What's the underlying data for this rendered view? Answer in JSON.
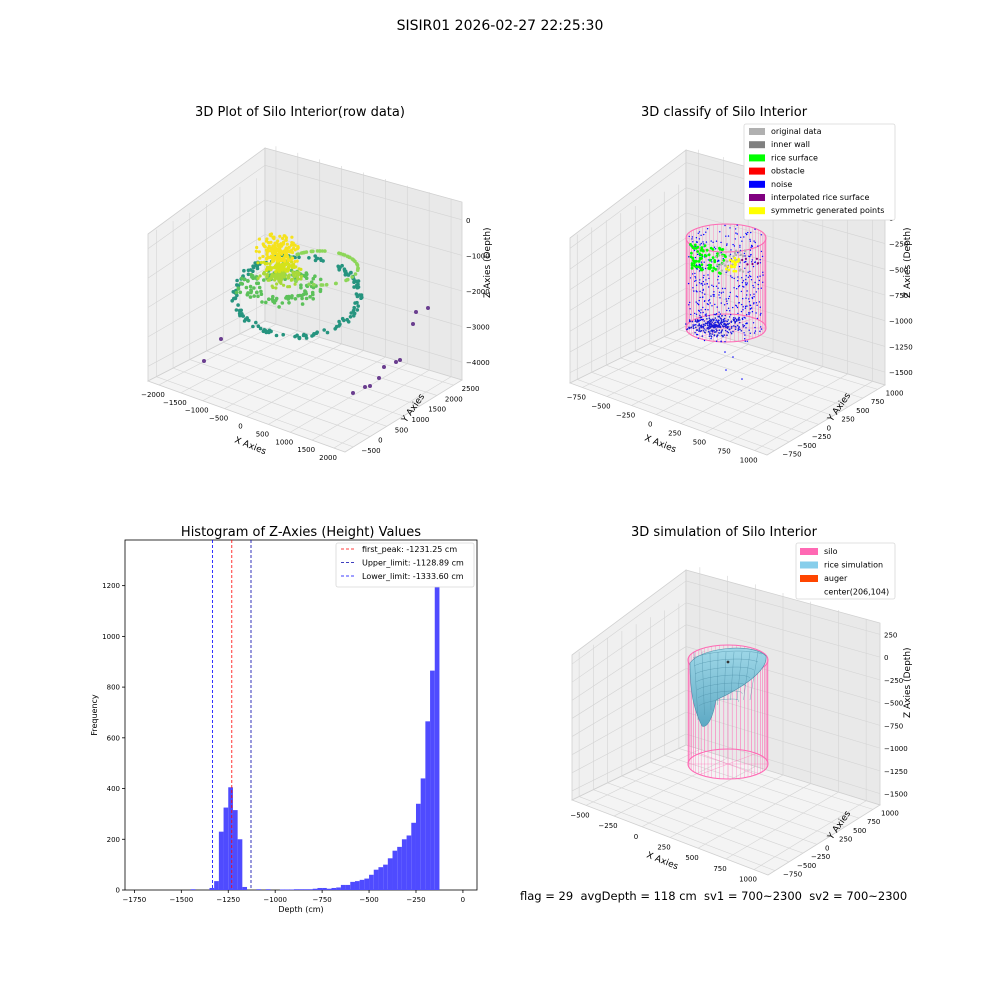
{
  "figure_title": "SISIR01 2026-02-27 22:25:30",
  "status_line": "flag = 29  avgDepth = 118 cm  sv1 = 700~2300  sv2 = 700~2300",
  "chart_data": [
    {
      "type": "scatter",
      "title": "3D Plot of Silo Interior(row data)",
      "xlabel": "X Axies",
      "ylabel": "Y Axies",
      "zlabel": "Z Axies (Depth)",
      "x_ticks": [
        "−2000",
        "−1500",
        "−1000",
        "−500",
        "0",
        "500",
        "1000",
        "1500",
        "2000"
      ],
      "y_ticks": [
        "−500",
        "0",
        "500",
        "1000",
        "1500",
        "2000",
        "2500"
      ],
      "z_ticks": [
        "0",
        "−1000",
        "−2000",
        "−3000",
        "−4000"
      ],
      "xlim": [
        -2000,
        2000
      ],
      "ylim": [
        -500,
        2500
      ],
      "zlim": [
        -4500,
        0
      ],
      "colormap": "viridis",
      "grid": true
    },
    {
      "type": "scatter",
      "title": "3D classify of Silo Interior",
      "xlabel": "X Axies",
      "ylabel": "Y Axies",
      "zlabel": "Z Axies (Depth)",
      "x_ticks": [
        "−750",
        "−500",
        "−250",
        "0",
        "250",
        "500",
        "750",
        "1000"
      ],
      "y_ticks": [
        "−750",
        "−500",
        "−250",
        "0",
        "250",
        "500",
        "750",
        "1000"
      ],
      "z_ticks": [
        "0",
        "−250",
        "−500",
        "−750",
        "−1000",
        "−1250",
        "−1500"
      ],
      "legend": [
        {
          "label": "original data",
          "color": "#b0b0b0"
        },
        {
          "label": "inner wall",
          "color": "#808080"
        },
        {
          "label": "rice surface",
          "color": "#00ff00"
        },
        {
          "label": "obstacle",
          "color": "#ff0000"
        },
        {
          "label": "noise",
          "color": "#0000ff"
        },
        {
          "label": "interpolated rice surface",
          "color": "#800080"
        },
        {
          "label": "symmetric generated points",
          "color": "#ffff00"
        }
      ],
      "legend_loc": "upper right",
      "grid": true
    },
    {
      "type": "histogram",
      "title": "Histogram of Z-Axies (Height) Values",
      "xlabel": "Depth (cm)",
      "ylabel": "Frequency",
      "xlim": [
        -1800,
        75
      ],
      "ylim": [
        0,
        1380
      ],
      "x_ticks": [
        -1750,
        -1500,
        -1250,
        -1000,
        -750,
        -500,
        -250,
        0
      ],
      "x_tick_labels": [
        "−1750",
        "−1500",
        "−1250",
        "−1000",
        "−750",
        "−500",
        "−250",
        "0"
      ],
      "y_ticks": [
        0,
        200,
        400,
        600,
        800,
        1000,
        1200
      ],
      "y_tick_labels": [
        "0",
        "200",
        "400",
        "600",
        "800",
        "1000",
        "1200"
      ],
      "bar_color": "#4f4bff",
      "bins": [
        {
          "start": -1450,
          "end": -1425,
          "count": 3
        },
        {
          "start": -1350,
          "end": -1325,
          "count": 8
        },
        {
          "start": -1325,
          "end": -1300,
          "count": 35
        },
        {
          "start": -1300,
          "end": -1275,
          "count": 230
        },
        {
          "start": -1275,
          "end": -1250,
          "count": 325
        },
        {
          "start": -1250,
          "end": -1225,
          "count": 405
        },
        {
          "start": -1225,
          "end": -1200,
          "count": 315
        },
        {
          "start": -1200,
          "end": -1175,
          "count": 200
        },
        {
          "start": -1175,
          "end": -1150,
          "count": 12
        },
        {
          "start": -1100,
          "end": -1075,
          "count": 3
        },
        {
          "start": -1050,
          "end": -1025,
          "count": 3
        },
        {
          "start": -975,
          "end": -950,
          "count": 2
        },
        {
          "start": -950,
          "end": -925,
          "count": 2
        },
        {
          "start": -925,
          "end": -900,
          "count": 2
        },
        {
          "start": -900,
          "end": -875,
          "count": 3
        },
        {
          "start": -875,
          "end": -850,
          "count": 3
        },
        {
          "start": -850,
          "end": -825,
          "count": 3
        },
        {
          "start": -825,
          "end": -800,
          "count": 3
        },
        {
          "start": -800,
          "end": -775,
          "count": 5
        },
        {
          "start": -775,
          "end": -750,
          "count": 8
        },
        {
          "start": -750,
          "end": -725,
          "count": 8
        },
        {
          "start": -725,
          "end": -700,
          "count": 5
        },
        {
          "start": -700,
          "end": -675,
          "count": 8
        },
        {
          "start": -675,
          "end": -650,
          "count": 10
        },
        {
          "start": -650,
          "end": -625,
          "count": 20
        },
        {
          "start": -625,
          "end": -600,
          "count": 20
        },
        {
          "start": -600,
          "end": -575,
          "count": 32
        },
        {
          "start": -575,
          "end": -550,
          "count": 35
        },
        {
          "start": -550,
          "end": -525,
          "count": 40
        },
        {
          "start": -525,
          "end": -500,
          "count": 45
        },
        {
          "start": -500,
          "end": -475,
          "count": 60
        },
        {
          "start": -475,
          "end": -450,
          "count": 80
        },
        {
          "start": -450,
          "end": -425,
          "count": 90
        },
        {
          "start": -425,
          "end": -400,
          "count": 100
        },
        {
          "start": -400,
          "end": -375,
          "count": 125
        },
        {
          "start": -375,
          "end": -350,
          "count": 155
        },
        {
          "start": -350,
          "end": -325,
          "count": 170
        },
        {
          "start": -325,
          "end": -300,
          "count": 200
        },
        {
          "start": -300,
          "end": -275,
          "count": 215
        },
        {
          "start": -275,
          "end": -250,
          "count": 265
        },
        {
          "start": -250,
          "end": -225,
          "count": 340
        },
        {
          "start": -225,
          "end": -200,
          "count": 440
        },
        {
          "start": -200,
          "end": -175,
          "count": 665
        },
        {
          "start": -175,
          "end": -150,
          "count": 865
        },
        {
          "start": -150,
          "end": -125,
          "count": 1310
        }
      ],
      "vlines": [
        {
          "x": -1231.25,
          "label": "first_peak: -1231.25 cm",
          "color": "#ff0000"
        },
        {
          "x": -1128.89,
          "label": "Upper_limit: -1128.89 cm",
          "color": "#0000aa"
        },
        {
          "x": -1333.6,
          "label": "Lower_limit: -1333.60 cm",
          "color": "#0000ff"
        }
      ],
      "legend_loc": "upper right"
    },
    {
      "type": "surface",
      "title": "3D simulation of Silo Interior",
      "xlabel": "X Axies",
      "ylabel": "Y Axies",
      "zlabel": "Z Axies (Depth)",
      "x_ticks": [
        "−500",
        "−250",
        "0",
        "250",
        "500",
        "750",
        "1000"
      ],
      "y_ticks": [
        "−750",
        "−500",
        "−250",
        "0",
        "250",
        "500",
        "750",
        "1000"
      ],
      "z_ticks": [
        "250",
        "0",
        "−250",
        "−500",
        "−750",
        "−1000",
        "−1250",
        "−1500"
      ],
      "legend": [
        {
          "label": "silo",
          "color": "#ff69b4"
        },
        {
          "label": "rice simulation",
          "color": "#87ceeb"
        },
        {
          "label": "auger",
          "color": "#ff4500"
        },
        {
          "label": "center(206,104)",
          "color": ""
        }
      ],
      "legend_loc": "upper right",
      "grid": true
    }
  ]
}
